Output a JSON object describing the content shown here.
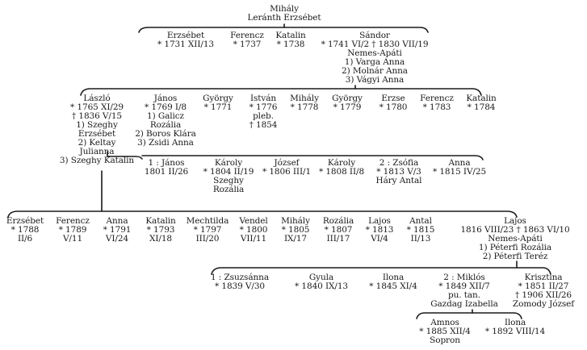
{
  "root": {
    "name": "Mihály",
    "spouse": "Leránth Erzsébet"
  },
  "gen1": [
    {
      "name": "Erzsébet",
      "dates": "* 1731 XII/13"
    },
    {
      "name": "Ferencz",
      "dates": "* 1737"
    },
    {
      "name": "Katalin",
      "dates": "* 1738"
    },
    {
      "name": "Sándor",
      "dates": "* 1741 VI/2 † 1830 VII/19",
      "title": "Nemes-Apáti",
      "spouses": [
        "1) Varga Anna",
        "2) Molnár Anna",
        "3) Vágyi Anna"
      ]
    }
  ],
  "gen2": [
    {
      "name": "László",
      "dates": [
        "* 1765 XI/29",
        "† 1836 V/15"
      ],
      "spouses": [
        "1) Szeghy",
        "Erzsébet",
        "2) Keltay",
        "Julianna",
        "3) Szeghy Katalin"
      ]
    },
    {
      "name": "János",
      "dates": [
        "* 1769 I/8"
      ],
      "spouses": [
        "1) Galicz",
        "Rozália",
        "2) Boros Klára",
        "3) Zsidi Anna"
      ]
    },
    {
      "name": "György",
      "dates": [
        "* 1771"
      ]
    },
    {
      "name": "István",
      "dates": [
        "* 1776",
        "pleb.",
        "† 1854"
      ]
    },
    {
      "name": "Mihály",
      "dates": [
        "* 1778"
      ]
    },
    {
      "name": "György",
      "dates": [
        "* 1779"
      ]
    },
    {
      "name": "Erzse",
      "dates": [
        "* 1780"
      ]
    },
    {
      "name": "Ferencz",
      "dates": [
        "* 1783"
      ]
    },
    {
      "name": "Katalin",
      "dates": [
        "* 1784"
      ]
    }
  ],
  "gen3": [
    {
      "name": "1 : János",
      "dates": "1801 II/26"
    },
    {
      "name": "Károly",
      "dates": "* 1804 II/19",
      "spouse": [
        "Szeghy",
        "Rozália"
      ]
    },
    {
      "name": "József",
      "dates": "* 1806 III/1"
    },
    {
      "name": "Károly",
      "dates": "* 1808 II/8"
    },
    {
      "name": "2 : Zsófia",
      "dates": "* 1813 V/3",
      "spouse": [
        "Háry Antal"
      ]
    },
    {
      "name": "Anna",
      "dates": "* 1815 IV/25"
    }
  ],
  "gen4": [
    {
      "name": "Erzsébet",
      "dates": [
        "* 1788",
        "II/6"
      ]
    },
    {
      "name": "Ferencz",
      "dates": [
        "* 1789",
        "V/11"
      ]
    },
    {
      "name": "Anna",
      "dates": [
        "* 1791",
        "VI/24"
      ]
    },
    {
      "name": "Katalin",
      "dates": [
        "* 1793",
        "XI/18"
      ]
    },
    {
      "name": "Mechtilda",
      "dates": [
        "* 1797",
        "III/20"
      ]
    },
    {
      "name": "Vendel",
      "dates": [
        "* 1800",
        "VII/11"
      ]
    },
    {
      "name": "Mihály",
      "dates": [
        "* 1805",
        "IX/17"
      ]
    },
    {
      "name": "Rozália",
      "dates": [
        "* 1807",
        "III/17"
      ]
    },
    {
      "name": "Lajos",
      "dates": [
        "* 1813",
        "VI/4"
      ]
    },
    {
      "name": "Antal",
      "dates": [
        "* 1815",
        "II/13"
      ]
    },
    {
      "name": "Lajos",
      "dates": [
        "1816 VIII/23 † 1863 VI/10",
        "Nemes-Apáti",
        "1) Péterfi Rozália",
        "2) Péterfi Teréz"
      ]
    }
  ],
  "gen5": [
    {
      "name": "1 : Zsuzsánna",
      "dates": [
        "* 1839 V/30"
      ]
    },
    {
      "name": "Gyula",
      "dates": [
        "* 1840 IX/13"
      ]
    },
    {
      "name": "Ilona",
      "dates": [
        "* 1845 XI/4"
      ]
    },
    {
      "name": "2 : Miklós",
      "dates": [
        "* 1849 XII/7",
        "pu. tan.",
        "Gazdag Izabella"
      ]
    },
    {
      "name": "Krisztina",
      "dates": [
        "* 1851 II/27",
        "† 1906 XII/26",
        "Zomody József"
      ]
    }
  ],
  "gen6": [
    {
      "name": "Amnos",
      "dates": [
        "* 1885 XII/4",
        "Sopron"
      ]
    },
    {
      "name": "Ilona",
      "dates": [
        "* 1892 VIII/14"
      ]
    }
  ]
}
